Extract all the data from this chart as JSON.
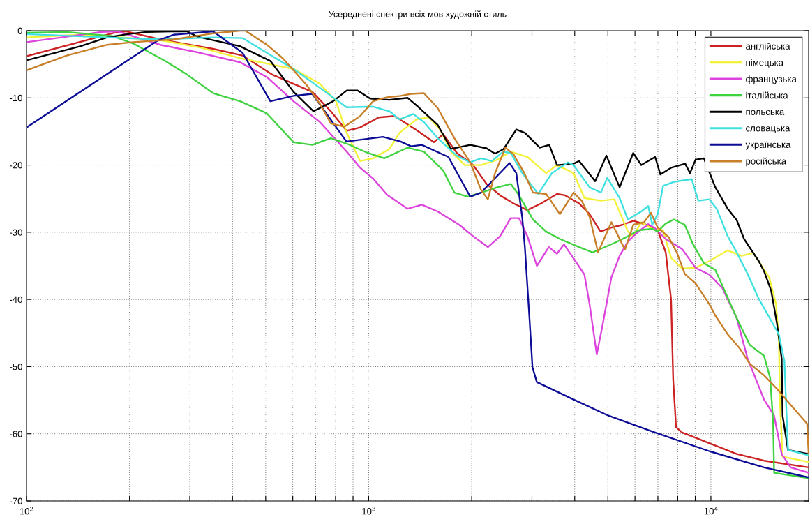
{
  "chart_data": {
    "type": "line",
    "title": "Усереднені спектри всіх мов художній стиль",
    "log": "x",
    "grid": true,
    "legend": "top right",
    "line_style": "solid",
    "xlim": [
      100,
      19300
    ],
    "ylim": [
      -70,
      0
    ],
    "xticks": [
      {
        "value": 100,
        "label": "10$^{2}$"
      },
      {
        "value": 200,
        "label": null
      },
      {
        "value": 300,
        "label": null
      },
      {
        "value": 400,
        "label": null
      },
      {
        "value": 500,
        "label": null
      },
      {
        "value": 600,
        "label": null
      },
      {
        "value": 700,
        "label": null
      },
      {
        "value": 800,
        "label": null
      },
      {
        "value": 900,
        "label": null
      },
      {
        "value": 1000,
        "label": "10$^{3}$"
      },
      {
        "value": 2000,
        "label": null
      },
      {
        "value": 3000,
        "label": null
      },
      {
        "value": 4000,
        "label": null
      },
      {
        "value": 5000,
        "label": null
      },
      {
        "value": 6000,
        "label": null
      },
      {
        "value": 7000,
        "label": null
      },
      {
        "value": 8000,
        "label": null
      },
      {
        "value": 9000,
        "label": null
      },
      {
        "value": 10000,
        "label": "10$^{4}$"
      }
    ],
    "yticks": [
      -70,
      -60,
      -50,
      -40,
      -30,
      -20,
      -10,
      0
    ],
    "series": [
      {
        "name": "англійська",
        "color": "#cc2222",
        "x": [
          100,
          181,
          195,
          246,
          351,
          428,
          521,
          603,
          684,
          775,
          862,
          944,
          1070,
          1190,
          1380,
          1550,
          1650,
          1810,
          2020,
          2210,
          2420,
          2650,
          2910,
          3190,
          3550,
          3750,
          4120,
          4420,
          4760,
          5120,
          5510,
          5930,
          6500,
          6990,
          7380,
          7650,
          7760,
          7910,
          8240,
          9890,
          11900,
          14300,
          19300
        ],
        "values": [
          -3.8,
          -0.3,
          -0.1,
          -1.3,
          -2.7,
          -3.7,
          -6.5,
          -7.9,
          -9.1,
          -12.0,
          -14.9,
          -14.4,
          -12.9,
          -12.7,
          -14.8,
          -16.6,
          -15.4,
          -18.2,
          -20.0,
          -22.8,
          -24.5,
          -25.7,
          -26.7,
          -25.7,
          -24.3,
          -24.5,
          -25.7,
          -27.3,
          -29.9,
          -29.3,
          -28.9,
          -28.3,
          -28.9,
          -29.7,
          -33.0,
          -40.0,
          -52.0,
          -59.0,
          -59.8,
          -61.4,
          -63.0,
          -64.0,
          -65.0
        ]
      },
      {
        "name": "німецька",
        "color": "#f2f23a",
        "x": [
          100,
          144,
          246,
          322,
          421,
          504,
          603,
          720,
          802,
          862,
          944,
          1030,
          1150,
          1230,
          1380,
          1500,
          1620,
          1740,
          1910,
          2130,
          2380,
          2600,
          2910,
          3300,
          3550,
          3970,
          4270,
          4760,
          5220,
          5720,
          5930,
          6260,
          6740,
          7250,
          7650,
          8240,
          9020,
          9890,
          11200,
          12300,
          13300,
          14800,
          15500,
          15800,
          15900,
          16200,
          19300
        ],
        "values": [
          -1.0,
          -0.6,
          -1.4,
          -2.5,
          -4.1,
          -4.9,
          -5.7,
          -7.9,
          -10.5,
          -15.2,
          -19.4,
          -19.0,
          -17.6,
          -15.2,
          -13.2,
          -12.9,
          -14.8,
          -18.0,
          -20.0,
          -20.0,
          -19.2,
          -18.0,
          -18.8,
          -21.2,
          -20.0,
          -21.2,
          -24.9,
          -25.3,
          -25.1,
          -29.9,
          -30.6,
          -28.5,
          -29.5,
          -29.7,
          -33.8,
          -35.4,
          -35.3,
          -34.3,
          -32.7,
          -33.5,
          -33.1,
          -36.7,
          -40.7,
          -46.0,
          -54.9,
          -63.4,
          -64.2
        ]
      },
      {
        "name": "французька",
        "color": "#dd44dd",
        "x": [
          100,
          131,
          165,
          184,
          246,
          322,
          421,
          504,
          603,
          720,
          862,
          944,
          1030,
          1130,
          1300,
          1430,
          1590,
          1840,
          2020,
          2230,
          2420,
          2600,
          2750,
          2910,
          3100,
          3360,
          3550,
          3720,
          3970,
          4270,
          4420,
          4640,
          4850,
          5120,
          5410,
          5720,
          6040,
          6560,
          6860,
          7380,
          8240,
          9020,
          9890,
          10800,
          11900,
          12800,
          14300,
          15300,
          16100,
          17100,
          19300
        ],
        "values": [
          -1.7,
          -0.9,
          -0.2,
          -0.1,
          -2.1,
          -3.3,
          -4.7,
          -6.9,
          -10.5,
          -13.6,
          -18.0,
          -20.4,
          -22.0,
          -24.4,
          -26.5,
          -25.9,
          -26.9,
          -28.9,
          -30.6,
          -32.2,
          -30.6,
          -27.9,
          -27.9,
          -30.6,
          -35.0,
          -32.2,
          -33.2,
          -31.8,
          -33.9,
          -36.3,
          -40.7,
          -48.2,
          -43.2,
          -36.7,
          -33.5,
          -31.4,
          -30.2,
          -28.8,
          -29.4,
          -31.0,
          -32.5,
          -35.3,
          -36.3,
          -38.3,
          -42.8,
          -48.8,
          -54.9,
          -57.3,
          -63.0,
          -65.0,
          -65.8
        ]
      },
      {
        "name": "італійська",
        "color": "#3fd23f",
        "x": [
          100,
          131,
          178,
          205,
          254,
          294,
          351,
          421,
          504,
          603,
          684,
          775,
          862,
          995,
          1110,
          1300,
          1450,
          1650,
          1780,
          1950,
          2130,
          2380,
          2600,
          2750,
          3020,
          3300,
          3620,
          4120,
          4510,
          5220,
          5720,
          6150,
          6740,
          6990,
          7380,
          7800,
          8390,
          8870,
          9540,
          10300,
          10800,
          11900,
          13000,
          14300,
          14900,
          15200,
          15300,
          19300
        ],
        "values": [
          -0.3,
          -0.2,
          -0.8,
          -1.9,
          -4.5,
          -6.5,
          -9.3,
          -10.5,
          -12.3,
          -16.6,
          -17.0,
          -16.0,
          -16.8,
          -18.2,
          -19.0,
          -17.4,
          -18.0,
          -20.8,
          -24.1,
          -24.7,
          -24.1,
          -23.3,
          -22.8,
          -24.5,
          -28.1,
          -29.9,
          -31.0,
          -32.2,
          -33.0,
          -31.6,
          -30.6,
          -29.7,
          -29.5,
          -29.9,
          -28.7,
          -28.1,
          -28.9,
          -31.8,
          -34.6,
          -35.6,
          -37.9,
          -42.8,
          -46.8,
          -48.4,
          -51.7,
          -58.2,
          -65.8,
          -66.6
        ]
      },
      {
        "name": "польська",
        "color": "#000000",
        "x": [
          100,
          144,
          172,
          198,
          224,
          264,
          294,
          316,
          420,
          516,
          603,
          690,
          787,
          863,
          928,
          1010,
          1150,
          1300,
          1400,
          1590,
          1740,
          1980,
          2210,
          2340,
          2480,
          2700,
          2860,
          3160,
          3370,
          3550,
          3970,
          4120,
          4590,
          4950,
          5410,
          5930,
          6260,
          6870,
          7120,
          7650,
          8410,
          8690,
          9020,
          9540,
          10300,
          11200,
          11900,
          12500,
          13800,
          14300,
          15000,
          15600,
          16100,
          16200,
          16800,
          19300
        ],
        "values": [
          -4.4,
          -2.3,
          -1.0,
          -0.5,
          -0.2,
          -0.1,
          -0.1,
          -0.9,
          -2.3,
          -4.5,
          -9.1,
          -12.0,
          -10.5,
          -8.9,
          -8.9,
          -10.1,
          -10.3,
          -10.0,
          -11.4,
          -14.0,
          -17.6,
          -17.0,
          -17.5,
          -18.3,
          -17.6,
          -14.7,
          -15.2,
          -17.4,
          -17.0,
          -20.0,
          -19.8,
          -19.4,
          -22.4,
          -18.6,
          -23.3,
          -18.2,
          -20.0,
          -18.8,
          -21.4,
          -20.4,
          -19.8,
          -21.2,
          -19.2,
          -19.0,
          -23.3,
          -26.5,
          -28.2,
          -31.0,
          -34.3,
          -35.8,
          -38.7,
          -43.6,
          -48.8,
          -57.3,
          -62.4,
          -63.0
        ]
      },
      {
        "name": "словацька",
        "color": "#3fe0e0",
        "x": [
          100,
          172,
          246,
          351,
          428,
          504,
          603,
          720,
          862,
          1030,
          1150,
          1230,
          1350,
          1450,
          1590,
          1810,
          1980,
          2130,
          2290,
          2470,
          2600,
          2810,
          3130,
          3430,
          3820,
          3970,
          4420,
          4770,
          4980,
          5410,
          5720,
          6260,
          6560,
          6740,
          6990,
          7250,
          7800,
          8240,
          8790,
          9190,
          9890,
          10400,
          11200,
          11900,
          12800,
          13800,
          15800,
          16400,
          16800,
          19300
        ],
        "values": [
          -0.5,
          -1.0,
          -1.3,
          -1.0,
          -1.1,
          -3.3,
          -5.7,
          -8.5,
          -11.4,
          -11.3,
          -12.0,
          -13.2,
          -12.4,
          -13.6,
          -16.0,
          -18.6,
          -19.6,
          -19.0,
          -19.4,
          -18.0,
          -18.2,
          -21.2,
          -24.3,
          -21.2,
          -19.6,
          -20.0,
          -23.3,
          -24.1,
          -21.9,
          -24.9,
          -28.1,
          -26.9,
          -26.1,
          -28.9,
          -27.3,
          -23.1,
          -22.5,
          -22.3,
          -22.1,
          -25.3,
          -25.1,
          -26.5,
          -30.6,
          -33.0,
          -36.2,
          -39.9,
          -45.2,
          -49.2,
          -62.4,
          -63.2
        ]
      },
      {
        "name": "українська",
        "color": "#0c0c96",
        "x": [
          100,
          241,
          269,
          351,
          428,
          516,
          603,
          684,
          861,
          1100,
          1240,
          1330,
          1430,
          1710,
          1980,
          2130,
          2460,
          2580,
          2700,
          2810,
          2860,
          2950,
          3010,
          3100,
          3970,
          5020,
          6870,
          9910,
          14300,
          19300
        ],
        "values": [
          -14.4,
          -1.5,
          -0.6,
          -0.1,
          -3.3,
          -10.5,
          -9.7,
          -9.4,
          -16.5,
          -15.8,
          -16.5,
          -17.2,
          -17.0,
          -18.8,
          -24.7,
          -24.1,
          -20.8,
          -19.7,
          -21.2,
          -27.8,
          -32.2,
          -42.8,
          -50.1,
          -52.3,
          -54.9,
          -57.3,
          -59.8,
          -62.6,
          -65.0,
          -66.5
        ]
      },
      {
        "name": "російська",
        "color": "#c87f28",
        "x": [
          100,
          131,
          172,
          205,
          269,
          351,
          421,
          436,
          504,
          561,
          659,
          720,
          775,
          848,
          944,
          1030,
          1130,
          1240,
          1330,
          1450,
          1590,
          1780,
          1980,
          2130,
          2230,
          2340,
          2510,
          2650,
          2850,
          3020,
          3300,
          3620,
          3970,
          4190,
          4420,
          4680,
          5120,
          5610,
          5930,
          6380,
          6680,
          6990,
          7520,
          7950,
          8390,
          9020,
          9890,
          10300,
          11200,
          12100,
          13000,
          14300,
          15600,
          17100,
          19100,
          19300
        ],
        "values": [
          -5.9,
          -3.7,
          -2.1,
          -1.7,
          -1.3,
          -0.4,
          0,
          0,
          -2.1,
          -4.1,
          -8.1,
          -10.9,
          -13.8,
          -14.3,
          -12.7,
          -10.5,
          -9.9,
          -9.7,
          -9.4,
          -9.3,
          -11.5,
          -16.0,
          -19.6,
          -23.7,
          -25.1,
          -21.2,
          -17.4,
          -18.4,
          -21.2,
          -24.1,
          -24.3,
          -27.3,
          -24.1,
          -25.3,
          -27.7,
          -33.0,
          -28.5,
          -32.6,
          -28.9,
          -28.5,
          -27.1,
          -29.3,
          -30.7,
          -33.0,
          -36.2,
          -37.6,
          -40.7,
          -42.4,
          -45.2,
          -47.2,
          -49.6,
          -51.3,
          -53.3,
          -55.7,
          -58.5,
          -63.0
        ]
      }
    ]
  }
}
